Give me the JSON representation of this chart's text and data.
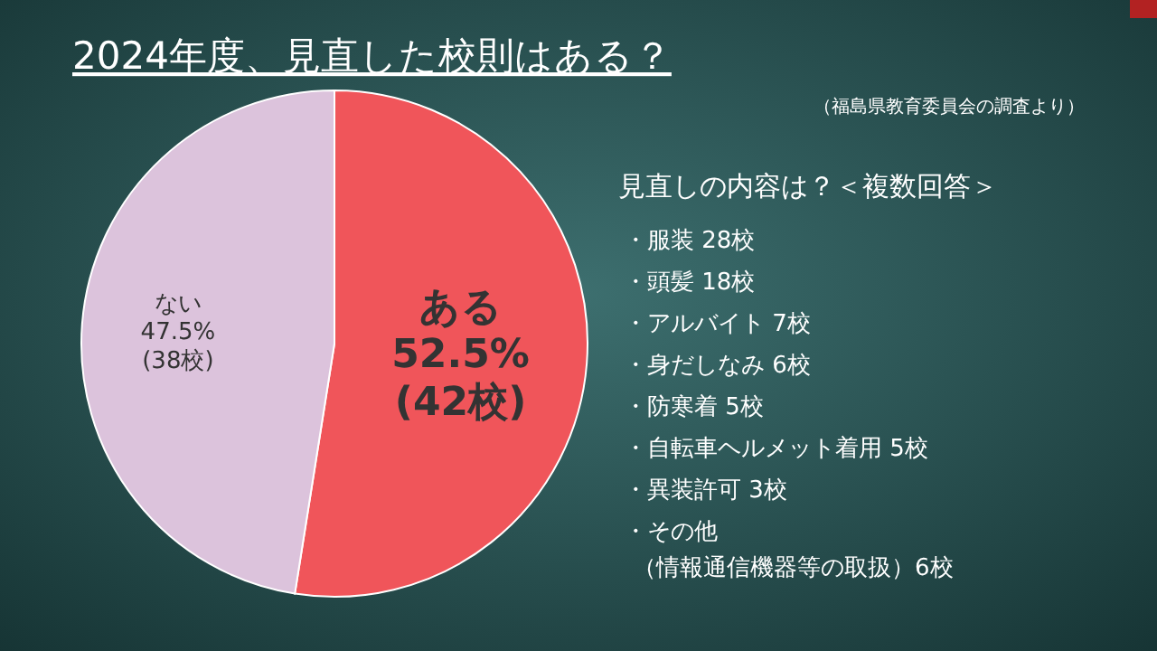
{
  "chart_data": {
    "type": "pie",
    "title": "2024年度、見直した校則はある？",
    "categories": [
      "ある",
      "ない"
    ],
    "values": [
      52.5,
      47.5
    ],
    "value_labels": [
      "52.5%\n(42校)",
      "47.5%\n(38校)"
    ],
    "colors": [
      "#f0555a",
      "#dcc3dc"
    ],
    "annotations": [
      "（福島県教育委員会の調査より）",
      "見直しの内容は？＜複数回答＞",
      "・服装 28校",
      "・頭髪 18校",
      "・アルバイト 7校",
      "・身だしなみ 6校",
      "・防寒着 5校",
      "・自転車ヘルメット着用 5校",
      "・異装許可 3校",
      "・その他",
      "（情報通信機器等の取扱）6校"
    ]
  }
}
